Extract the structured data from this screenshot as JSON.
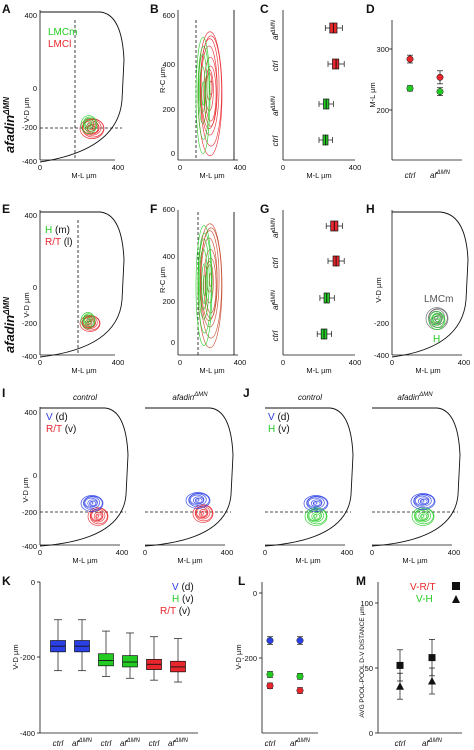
{
  "panels": {
    "A": {
      "letter": "A",
      "side_label": "afadin",
      "side_sup": "ΔMN",
      "xlabel": "M-L µm",
      "ylabel": "V-D µm",
      "xticks": [
        "0",
        "400"
      ],
      "yticks": [
        "400",
        "0",
        "-200",
        "-400"
      ],
      "legend": [
        {
          "text": "LMCm",
          "color": "#22cc22"
        },
        {
          "text": "LMCl",
          "color": "#e8262c"
        }
      ]
    },
    "B": {
      "letter": "B",
      "xlabel": "M-L µm",
      "ylabel": "R-C µm",
      "xticks": [
        "0",
        "400"
      ],
      "yticks": [
        "600",
        "400",
        "200",
        "0"
      ]
    },
    "C": {
      "letter": "C",
      "xlabel": "M-L µm",
      "xticks": [
        "0",
        "400"
      ],
      "rows": [
        "af",
        "ctrl",
        "af",
        "ctrl"
      ],
      "row_sup": [
        "ΔMN",
        "",
        "ΔMN",
        ""
      ]
    },
    "D": {
      "letter": "D",
      "ylabel": "M-L µm",
      "yticks": [
        "300",
        "200"
      ],
      "xcats": [
        "ctrl",
        "af"
      ],
      "xcat_sup": [
        "",
        "ΔMN"
      ]
    },
    "E": {
      "letter": "E",
      "side_label": "afadin",
      "side_sup": "ΔMN",
      "xlabel": "M-L µm",
      "ylabel": "V-D µm",
      "xticks": [
        "0",
        "400"
      ],
      "yticks": [
        "400",
        "0",
        "-200",
        "-400"
      ],
      "legend": [
        {
          "text": "H",
          "suffix": "(m)",
          "color": "#22cc22"
        },
        {
          "text": "R/T",
          "suffix": "(l)",
          "color": "#e8262c"
        }
      ]
    },
    "F": {
      "letter": "F",
      "xlabel": "M-L µm",
      "ylabel": "R-C µm",
      "xticks": [
        "0",
        "400"
      ],
      "yticks": [
        "600",
        "400",
        "200",
        "0"
      ]
    },
    "G": {
      "letter": "G",
      "xlabel": "M-L µm",
      "xticks": [
        "0",
        "400"
      ],
      "rows": [
        "af",
        "ctrl",
        "af",
        "ctrl"
      ],
      "row_sup": [
        "ΔMN",
        "",
        "ΔMN",
        ""
      ]
    },
    "H": {
      "letter": "H",
      "ylabel": "V-D µm",
      "xlabel": "M-L µm",
      "xticks": [
        "0",
        "400"
      ],
      "yticks": [
        "-200",
        "-400"
      ],
      "legend": [
        {
          "text": "LMCm",
          "color": "#555555"
        },
        {
          "text": "H",
          "color": "#22cc22"
        }
      ]
    },
    "I": {
      "letter": "I",
      "title_left": "control",
      "title_right": "afadin",
      "title_right_sup": "ΔMN",
      "xlabel": "M-L µm",
      "ylabel": "V-D µm",
      "xticks": [
        "0",
        "400"
      ],
      "yticks": [
        "400",
        "0",
        "-200",
        "-400"
      ],
      "legend": [
        {
          "text": "V",
          "suffix": "(d)",
          "color": "#2b3fe6"
        },
        {
          "text": "R/T",
          "suffix": "(v)",
          "color": "#e8262c"
        }
      ]
    },
    "J": {
      "letter": "J",
      "title_left": "control",
      "title_right": "afadin",
      "title_right_sup": "ΔMN",
      "xlabel": "M-L µm",
      "xticks": [
        "0",
        "400"
      ],
      "legend": [
        {
          "text": "V",
          "suffix": "(d)",
          "color": "#2b3fe6"
        },
        {
          "text": "H",
          "suffix": "(v)",
          "color": "#22cc22"
        }
      ]
    },
    "K": {
      "letter": "K",
      "ylabel": "V-D µm",
      "yticks": [
        "0",
        "-200",
        "-400"
      ],
      "xcats": [
        "ctrl",
        "af",
        "ctrl",
        "af",
        "ctrl",
        "af"
      ],
      "xcat_sup": [
        "",
        "ΔMN",
        "",
        "ΔMN",
        "",
        "ΔMN"
      ],
      "legend": [
        {
          "text": "V",
          "suffix": "(d)",
          "color": "#2b3fe6"
        },
        {
          "text": "H",
          "suffix": "(v)",
          "color": "#22cc22"
        },
        {
          "text": "R/T",
          "suffix": "(v)",
          "color": "#e8262c"
        }
      ]
    },
    "L": {
      "letter": "L",
      "ylabel": "V-D µm",
      "yticks": [
        "0",
        "-200"
      ],
      "xcats": [
        "ctrl",
        "af"
      ],
      "xcat_sup": [
        "",
        "ΔMN"
      ]
    },
    "M": {
      "letter": "M",
      "ylabel": "AVG POOL-POOL D-V DISTANCE  µm",
      "yticks": [
        "100",
        "50",
        "0"
      ],
      "xcats": [
        "ctrl",
        "af"
      ],
      "xcat_sup": [
        "",
        "ΔMN"
      ],
      "legend": [
        {
          "text": "V-R/T",
          "color": "#e8262c",
          "marker": "square"
        },
        {
          "text": "V-H",
          "color": "#22cc22",
          "marker": "triangle"
        }
      ]
    }
  },
  "chart_data": [
    {
      "panel": "C",
      "type": "box",
      "orientation": "horizontal",
      "axis": "M-L µm",
      "xlim": [
        0,
        400
      ],
      "series": [
        {
          "row": "af ΔMN",
          "color": "#e8262c",
          "whisker_low": 235,
          "q1": 260,
          "median": 280,
          "q3": 300,
          "whisker_high": 330
        },
        {
          "row": "ctrl",
          "color": "#e8262c",
          "whisker_low": 250,
          "q1": 275,
          "median": 295,
          "q3": 310,
          "whisker_high": 340
        },
        {
          "row": "af ΔMN",
          "color": "#22cc22",
          "whisker_low": 200,
          "q1": 225,
          "median": 240,
          "q3": 255,
          "whisker_high": 280
        },
        {
          "row": "ctrl",
          "color": "#22cc22",
          "whisker_low": 200,
          "q1": 222,
          "median": 237,
          "q3": 250,
          "whisker_high": 275
        }
      ]
    },
    {
      "panel": "D",
      "type": "scatter",
      "ylabel": "M-L µm",
      "ylim": [
        130,
        345
      ],
      "categories": [
        "ctrl",
        "af ΔMN"
      ],
      "series": [
        {
          "name": "LMCl",
          "color": "#e8262c",
          "values": [
            285,
            257
          ],
          "err": [
            6,
            10
          ]
        },
        {
          "name": "LMCm",
          "color": "#22cc22",
          "values": [
            240,
            235
          ],
          "err": [
            4,
            6
          ]
        }
      ]
    },
    {
      "panel": "G",
      "type": "box",
      "orientation": "horizontal",
      "axis": "M-L µm",
      "xlim": [
        0,
        400
      ],
      "series": [
        {
          "row": "af ΔMN",
          "color": "#e8262c",
          "whisker_low": 240,
          "q1": 265,
          "median": 285,
          "q3": 305,
          "whisker_high": 330
        },
        {
          "row": "ctrl",
          "color": "#e8262c",
          "whisker_low": 250,
          "q1": 278,
          "median": 295,
          "q3": 312,
          "whisker_high": 340
        },
        {
          "row": "af ΔMN",
          "color": "#22cc22",
          "whisker_low": 205,
          "q1": 228,
          "median": 243,
          "q3": 258,
          "whisker_high": 285
        },
        {
          "row": "ctrl",
          "color": "#22cc22",
          "whisker_low": 190,
          "q1": 212,
          "median": 228,
          "q3": 244,
          "whisker_high": 270
        }
      ]
    },
    {
      "panel": "K",
      "type": "box",
      "orientation": "vertical",
      "ylabel": "V-D µm",
      "ylim": [
        -400,
        0
      ],
      "series": [
        {
          "category": "ctrl",
          "color": "#2b3fe6",
          "whisker_low": -235,
          "q1": -185,
          "median": -170,
          "q3": -155,
          "whisker_high": -100
        },
        {
          "category": "af ΔMN",
          "color": "#2b3fe6",
          "whisker_low": -235,
          "q1": -185,
          "median": -170,
          "q3": -155,
          "whisker_high": -100
        },
        {
          "category": "ctrl",
          "color": "#22cc22",
          "whisker_low": -250,
          "q1": -222,
          "median": -208,
          "q3": -190,
          "whisker_high": -130
        },
        {
          "category": "af ΔMN",
          "color": "#22cc22",
          "whisker_low": -255,
          "q1": -225,
          "median": -212,
          "q3": -195,
          "whisker_high": -135
        },
        {
          "category": "ctrl",
          "color": "#e8262c",
          "whisker_low": -260,
          "q1": -232,
          "median": -218,
          "q3": -205,
          "whisker_high": -145
        },
        {
          "category": "af ΔMN",
          "color": "#e8262c",
          "whisker_low": -265,
          "q1": -238,
          "median": -225,
          "q3": -210,
          "whisker_high": -150
        }
      ]
    },
    {
      "panel": "L",
      "type": "scatter",
      "ylabel": "V-D µm",
      "ylim": [
        -270,
        -110
      ],
      "categories": [
        "ctrl",
        "af ΔMN"
      ],
      "series": [
        {
          "name": "V",
          "color": "#2b3fe6",
          "values": [
            -172,
            -172
          ],
          "err": [
            4,
            4
          ]
        },
        {
          "name": "H",
          "color": "#22cc22",
          "values": [
            -208,
            -210
          ],
          "err": [
            3,
            3
          ]
        },
        {
          "name": "R/T",
          "color": "#e8262c",
          "values": [
            -220,
            -225
          ],
          "err": [
            3,
            3
          ]
        }
      ]
    },
    {
      "panel": "M",
      "type": "scatter",
      "ylabel": "AVG POOL-POOL D-V DISTANCE  µm",
      "ylim": [
        0,
        100
      ],
      "categories": [
        "ctrl",
        "af ΔMN"
      ],
      "series": [
        {
          "name": "V-R/T",
          "color": "#111111",
          "marker": "square",
          "values": [
            52,
            58
          ],
          "err": [
            12,
            14
          ]
        },
        {
          "name": "V-H",
          "color": "#111111",
          "marker": "triangle",
          "values": [
            36,
            40
          ],
          "err": [
            10,
            10
          ]
        }
      ]
    }
  ]
}
